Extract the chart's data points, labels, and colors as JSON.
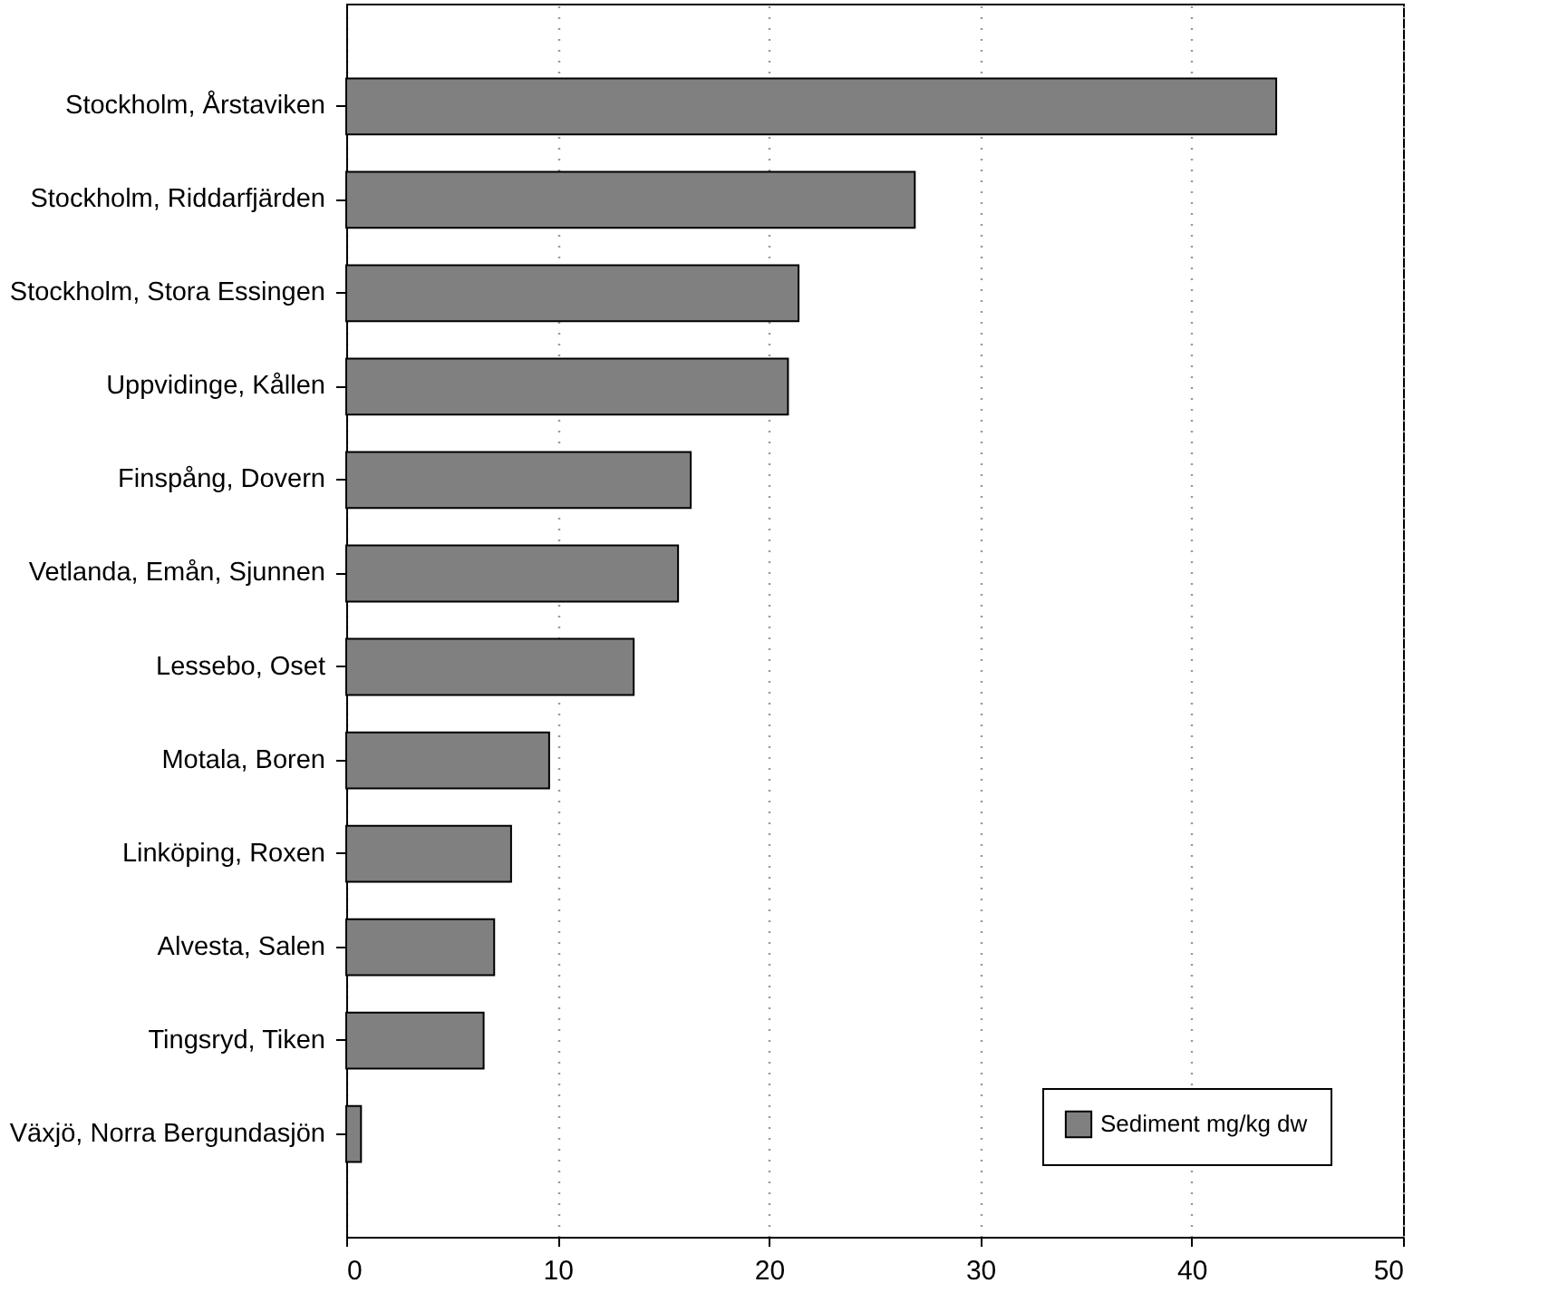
{
  "chart_data": {
    "type": "bar",
    "orientation": "horizontal",
    "categories": [
      "Stockholm, Årstaviken",
      "Stockholm, Riddarfjärden",
      "Stockholm, Stora Essingen",
      "Uppvidinge, Kållen",
      "Finspång, Dovern",
      "Vetlanda, Emån, Sjunnen",
      "Lessebo, Oset",
      "Motala, Boren",
      "Linköping, Roxen",
      "Alvesta, Salen",
      "Tingsryd, Tiken",
      "Växjö, Norra Bergundasjön"
    ],
    "series": [
      {
        "name": "Sediment mg/kg dw",
        "color": "#808080",
        "values": [
          44,
          26.9,
          21.4,
          20.9,
          16.3,
          15.7,
          13.6,
          9.6,
          7.8,
          7.0,
          6.5,
          0.7
        ]
      }
    ],
    "xlim": [
      0,
      50
    ],
    "xticks": [
      0,
      10,
      20,
      30,
      40,
      50
    ],
    "grid": "x",
    "legend": "bottom right"
  }
}
